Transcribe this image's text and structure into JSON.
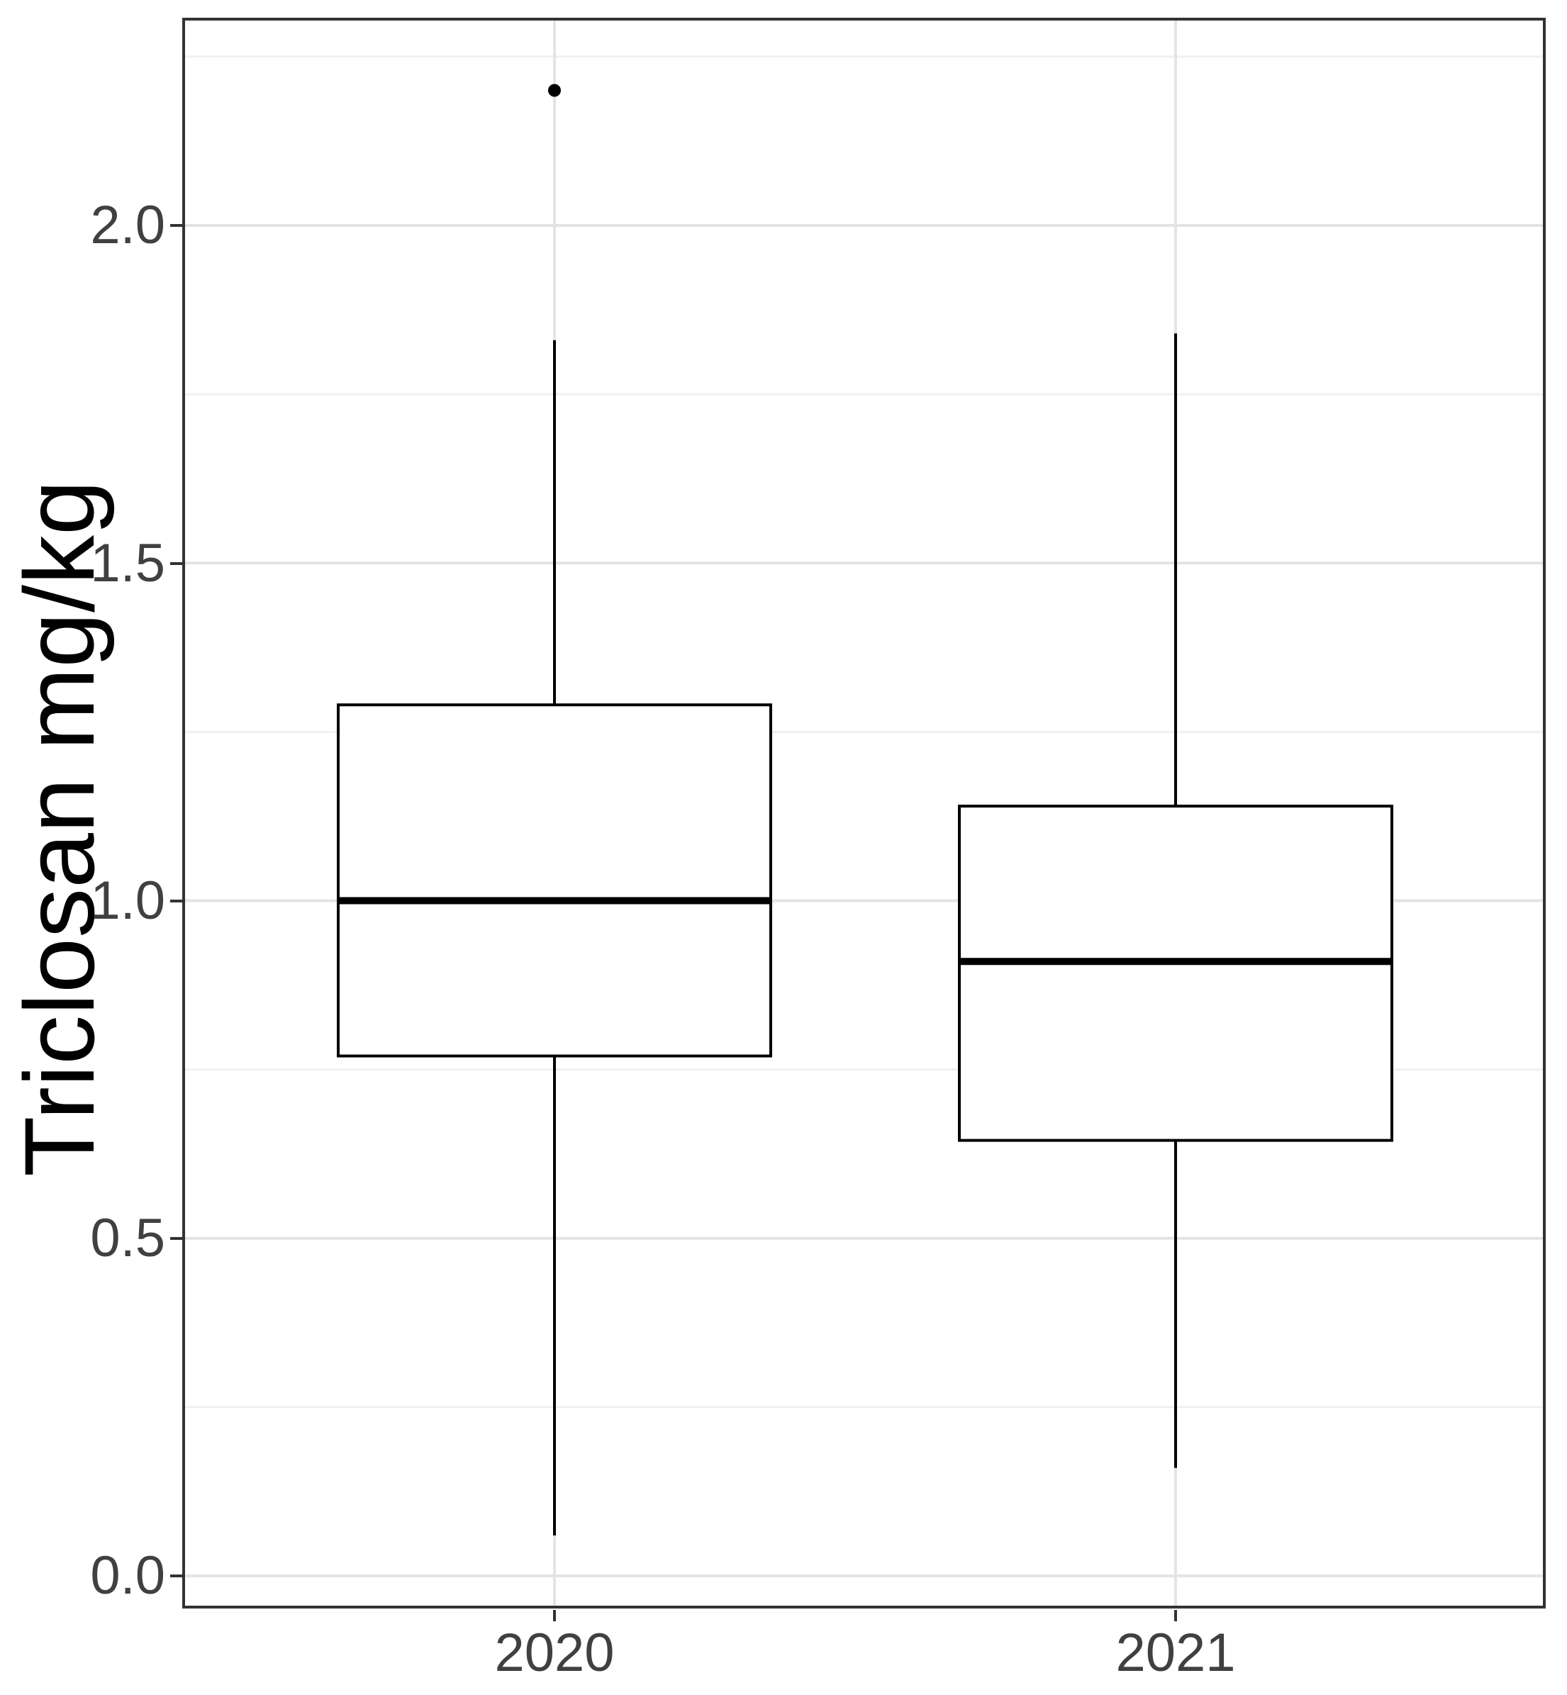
{
  "axis": {
    "y": {
      "title": "Triclosan mg/kg",
      "tick_labels": [
        "2.0",
        "1.5",
        "1.0",
        "0.5",
        "0.0"
      ],
      "tick_values": [
        2.0,
        1.5,
        1.0,
        0.5,
        0.0
      ],
      "minor_tick_values": [
        2.25,
        1.75,
        1.25,
        0.75,
        0.25
      ]
    },
    "x": {
      "categories": [
        "2020",
        "2021"
      ]
    }
  },
  "chart_data": {
    "type": "boxplot",
    "title": "",
    "xlabel": "",
    "ylabel": "Triclosan mg/kg",
    "categories": [
      "2020",
      "2021"
    ],
    "series": [
      {
        "name": "2020",
        "whisker_low": 0.06,
        "q1": 0.77,
        "median": 1.0,
        "q3": 1.29,
        "whisker_high": 1.83,
        "outliers": [
          2.2
        ]
      },
      {
        "name": "2021",
        "whisker_low": 0.16,
        "q1": 0.645,
        "median": 0.91,
        "q3": 1.14,
        "whisker_high": 1.84,
        "outliers": []
      }
    ],
    "ylim": [
      -0.05,
      2.31
    ],
    "grid": "major+minor horizontal, major vertical at categories",
    "legend": "none",
    "box_fill": "white"
  },
  "colors": {
    "background": "#ffffff",
    "panel_border": "#333333",
    "grid_major": "#e4e4e4",
    "grid_minor": "#f0f0f0",
    "box_stroke": "#000000",
    "box_fill": "#ffffff",
    "tick_text": "#404040",
    "axis_title_text": "#000000",
    "tick_mark": "#333333"
  }
}
